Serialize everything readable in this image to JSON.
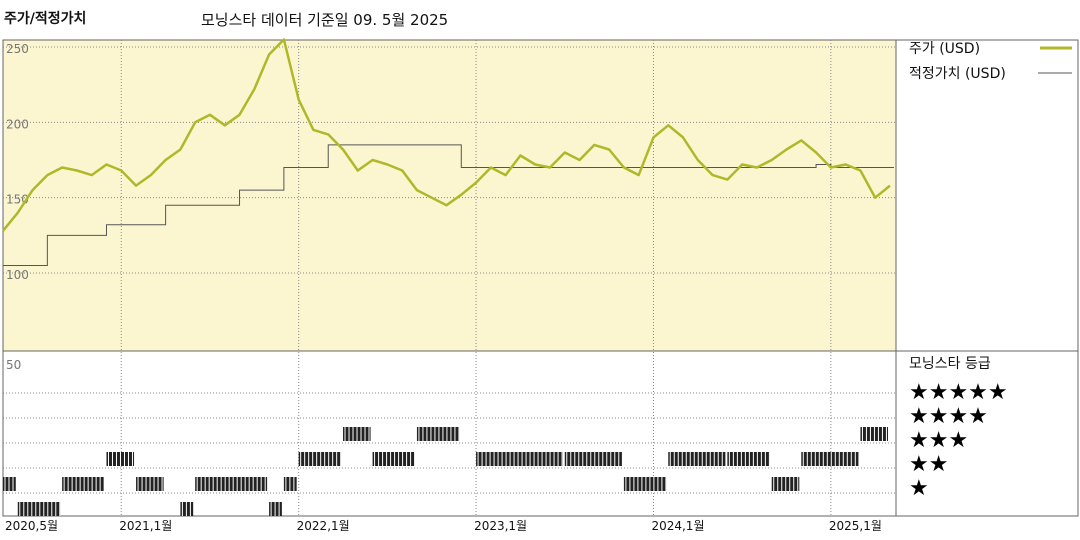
{
  "header": {
    "title": "주가/적정가치",
    "subtitle": "모닝스타 데이터 기준일 09. 5월 2025"
  },
  "legend": {
    "price_label": "주가 (USD)",
    "fair_label": "적정가치 (USD)",
    "rating_title": "모닝스타 등급"
  },
  "colors": {
    "price": "#b0b82a",
    "fair": "#555555",
    "upper_bg": "#fbf6d0",
    "grid": "#888888"
  },
  "chart_data": {
    "type": "line",
    "x_start": "2020-05",
    "x_end": "2025-05",
    "ylim": [
      50,
      260
    ],
    "y_ticks": [
      250,
      200,
      150,
      100
    ],
    "rating_axis_label": "50",
    "x_ticks": [
      "2020,5월",
      "2021,1월",
      "2022,1월",
      "2023,1월",
      "2024,1월",
      "2025,1월"
    ],
    "x_tick_dates": [
      "2020-05",
      "2021-01",
      "2022-01",
      "2023-01",
      "2024-01",
      "2025-01"
    ],
    "series": [
      {
        "name": "주가 (USD)",
        "x": [
          "2020-05",
          "2020-06",
          "2020-07",
          "2020-08",
          "2020-09",
          "2020-10",
          "2020-11",
          "2020-12",
          "2021-01",
          "2021-02",
          "2021-03",
          "2021-04",
          "2021-05",
          "2021-06",
          "2021-07",
          "2021-08",
          "2021-09",
          "2021-10",
          "2021-11",
          "2021-12",
          "2022-01",
          "2022-02",
          "2022-03",
          "2022-04",
          "2022-05",
          "2022-06",
          "2022-07",
          "2022-08",
          "2022-09",
          "2022-10",
          "2022-11",
          "2022-12",
          "2023-01",
          "2023-02",
          "2023-03",
          "2023-04",
          "2023-05",
          "2023-06",
          "2023-07",
          "2023-08",
          "2023-09",
          "2023-10",
          "2023-11",
          "2023-12",
          "2024-01",
          "2024-02",
          "2024-03",
          "2024-04",
          "2024-05",
          "2024-06",
          "2024-07",
          "2024-08",
          "2024-09",
          "2024-10",
          "2024-11",
          "2024-12",
          "2025-01",
          "2025-02",
          "2025-03",
          "2025-04",
          "2025-05"
        ],
        "y": [
          128,
          140,
          155,
          165,
          170,
          168,
          165,
          172,
          168,
          158,
          165,
          175,
          182,
          200,
          205,
          198,
          205,
          222,
          245,
          255,
          215,
          195,
          192,
          182,
          168,
          175,
          172,
          168,
          155,
          150,
          145,
          152,
          160,
          170,
          165,
          178,
          172,
          170,
          180,
          175,
          185,
          182,
          170,
          165,
          190,
          198,
          190,
          175,
          165,
          162,
          172,
          170,
          175,
          182,
          188,
          180,
          170,
          172,
          168,
          150,
          158
        ]
      },
      {
        "name": "적정가치 (USD)",
        "x": [
          "2020-05",
          "2020-08",
          "2020-12",
          "2021-04",
          "2021-09",
          "2021-12",
          "2022-03",
          "2022-12",
          "2024-12",
          "2025-01",
          "2025-05"
        ],
        "y": [
          105,
          125,
          132,
          145,
          155,
          170,
          185,
          170,
          172,
          170,
          170
        ]
      }
    ],
    "rating_levels": [
      "★★★★★",
      "★★★★",
      "★★★",
      "★★",
      "★"
    ],
    "ratings": [
      {
        "from": "2020-05",
        "to": "2020-06",
        "stars": 2
      },
      {
        "from": "2020-06",
        "to": "2020-09",
        "stars": 1
      },
      {
        "from": "2020-09",
        "to": "2020-12",
        "stars": 2
      },
      {
        "from": "2020-12",
        "to": "2021-02",
        "stars": 3
      },
      {
        "from": "2021-02",
        "to": "2021-04",
        "stars": 2
      },
      {
        "from": "2021-05",
        "to": "2021-06",
        "stars": 1
      },
      {
        "from": "2021-06",
        "to": "2021-11",
        "stars": 2
      },
      {
        "from": "2021-11",
        "to": "2021-12",
        "stars": 1
      },
      {
        "from": "2021-12",
        "to": "2022-01",
        "stars": 2
      },
      {
        "from": "2022-01",
        "to": "2022-04",
        "stars": 3
      },
      {
        "from": "2022-04",
        "to": "2022-06",
        "stars": 4
      },
      {
        "from": "2022-06",
        "to": "2022-09",
        "stars": 3
      },
      {
        "from": "2022-09",
        "to": "2022-12",
        "stars": 4
      },
      {
        "from": "2023-01",
        "to": "2023-07",
        "stars": 3
      },
      {
        "from": "2023-07",
        "to": "2023-11",
        "stars": 3
      },
      {
        "from": "2023-11",
        "to": "2024-02",
        "stars": 2
      },
      {
        "from": "2024-02",
        "to": "2024-06",
        "stars": 3
      },
      {
        "from": "2024-06",
        "to": "2024-09",
        "stars": 3
      },
      {
        "from": "2024-09",
        "to": "2024-11",
        "stars": 2
      },
      {
        "from": "2024-11",
        "to": "2025-03",
        "stars": 3
      },
      {
        "from": "2025-03",
        "to": "2025-05",
        "stars": 4
      }
    ]
  }
}
